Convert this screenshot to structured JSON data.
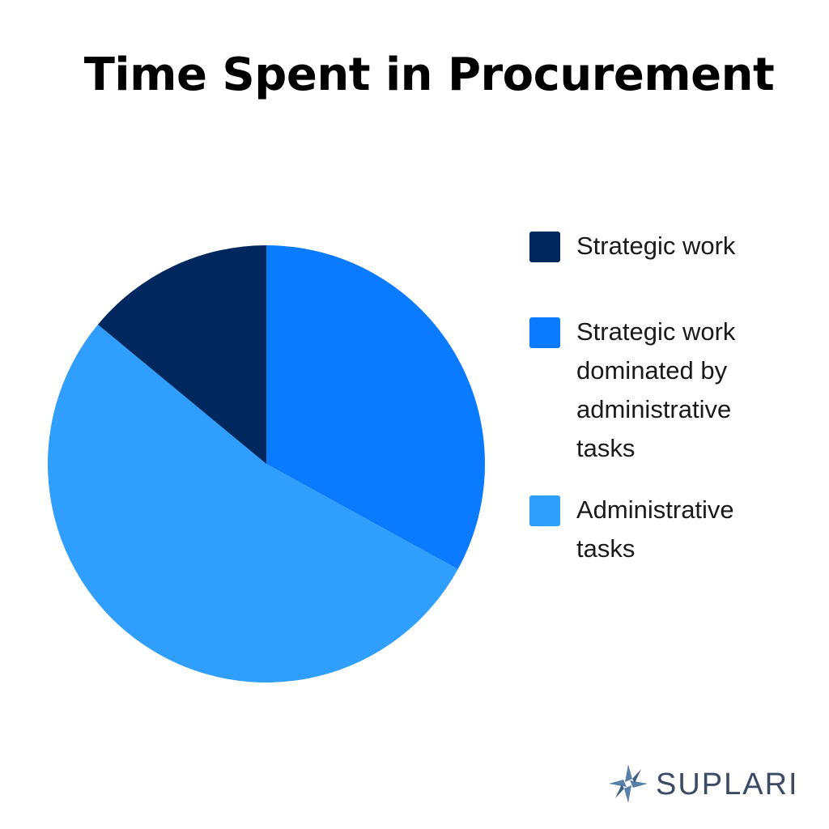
{
  "chart_data": {
    "type": "pie",
    "title": "Time Spent in Procurement",
    "slices": [
      {
        "label": "Strategic work",
        "value": 14,
        "color": "#00285f"
      },
      {
        "label": "Strategic work dominated by administrative tasks",
        "value": 33,
        "color": "#0a7bff"
      },
      {
        "label": "Administrative tasks",
        "value": 53,
        "color": "#2f9efd"
      }
    ],
    "legend_position": "right"
  },
  "legend": {
    "items": [
      {
        "label": "Strategic work",
        "color": "#00285f"
      },
      {
        "label": "Strategic work dominated by administrative tasks",
        "color": "#0a7bff"
      },
      {
        "label": "Administrative tasks",
        "color": "#2f9efd"
      }
    ]
  },
  "brand": {
    "name": "SUPLARI",
    "logo_icon": "suplari-star-logo",
    "text_color": "#3d4a63",
    "logo_color": "#5a7fa8"
  }
}
